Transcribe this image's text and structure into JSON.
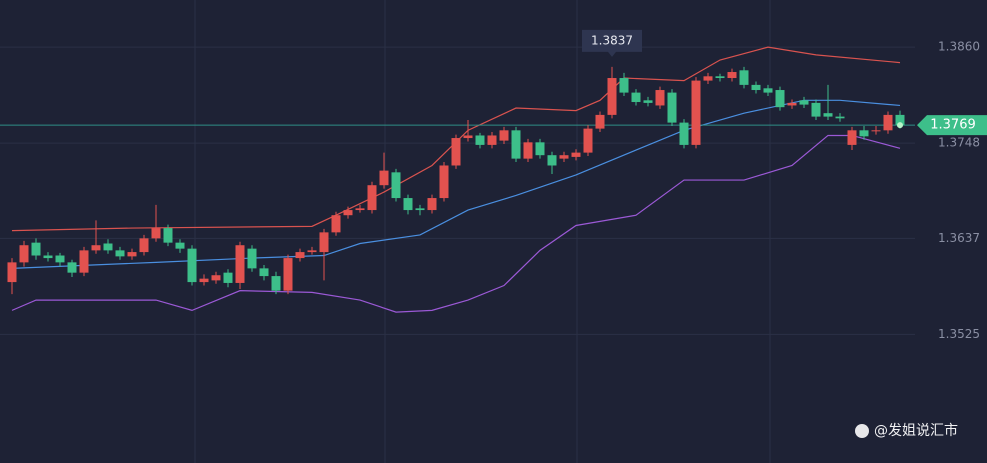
{
  "chart_data": {
    "type": "candlestick",
    "up_color": "#e2524f",
    "down_color": "#3dbf8a",
    "open": [
      1.3586,
      1.3609,
      1.3632,
      1.3617,
      1.3617,
      1.3609,
      1.3597,
      1.3623,
      1.3631,
      1.3623,
      1.3616,
      1.3621,
      1.3637,
      1.3649,
      1.3632,
      1.3625,
      1.3586,
      1.3588,
      1.3597,
      1.3585,
      1.3625,
      1.3602,
      1.3593,
      1.3576,
      1.3614,
      1.3621,
      1.3621,
      1.3644,
      1.3664,
      1.367,
      1.367,
      1.3699,
      1.3714,
      1.3684,
      1.3672,
      1.367,
      1.3684,
      1.3722,
      1.3754,
      1.3757,
      1.3746,
      1.3751,
      1.3763,
      1.373,
      1.3749,
      1.3734,
      1.373,
      1.3732,
      1.3737,
      1.3765,
      1.3781,
      1.3824,
      1.3807,
      1.3798,
      1.3792,
      1.3807,
      1.3772,
      1.3746,
      1.3821,
      1.3826,
      1.3824,
      1.3833,
      1.3816,
      1.3812,
      1.381,
      1.3792,
      1.3798,
      1.3795,
      1.3783,
      1.3779,
      1.3746,
      1.3763,
      1.3762,
      1.3763,
      1.3781
    ],
    "high": [
      1.3614,
      1.3634,
      1.3637,
      1.3621,
      1.362,
      1.3612,
      1.3627,
      1.3658,
      1.3636,
      1.3627,
      1.3625,
      1.3641,
      1.3676,
      1.3653,
      1.3636,
      1.3629,
      1.3595,
      1.3598,
      1.3601,
      1.3633,
      1.3629,
      1.3606,
      1.3598,
      1.3618,
      1.3625,
      1.3627,
      1.3648,
      1.3668,
      1.3674,
      1.3676,
      1.3703,
      1.3737,
      1.3718,
      1.3688,
      1.3676,
      1.3688,
      1.3726,
      1.3758,
      1.3775,
      1.376,
      1.3761,
      1.3767,
      1.3767,
      1.3753,
      1.3753,
      1.3738,
      1.3738,
      1.3741,
      1.3769,
      1.3785,
      1.3837,
      1.383,
      1.3811,
      1.3802,
      1.3814,
      1.3811,
      1.3776,
      1.3825,
      1.383,
      1.3829,
      1.3835,
      1.3837,
      1.382,
      1.3816,
      1.3814,
      1.3799,
      1.3802,
      1.3799,
      1.3816,
      1.3783,
      1.3767,
      1.3768,
      1.3768,
      1.3785,
      1.3786
    ],
    "low": [
      1.3572,
      1.3604,
      1.3612,
      1.361,
      1.3604,
      1.3592,
      1.3593,
      1.3619,
      1.3619,
      1.3612,
      1.3612,
      1.3617,
      1.3633,
      1.3628,
      1.362,
      1.3582,
      1.3582,
      1.3584,
      1.358,
      1.3578,
      1.3598,
      1.3588,
      1.3572,
      1.3572,
      1.361,
      1.3618,
      1.3588,
      1.364,
      1.366,
      1.3667,
      1.3666,
      1.3695,
      1.368,
      1.3665,
      1.3664,
      1.3666,
      1.368,
      1.3718,
      1.375,
      1.3742,
      1.3742,
      1.3747,
      1.3726,
      1.3726,
      1.373,
      1.3712,
      1.3726,
      1.3728,
      1.3733,
      1.3761,
      1.3777,
      1.3803,
      1.3792,
      1.3791,
      1.3788,
      1.3768,
      1.3742,
      1.3742,
      1.3817,
      1.382,
      1.382,
      1.3812,
      1.3806,
      1.3803,
      1.3786,
      1.3788,
      1.3789,
      1.3775,
      1.3775,
      1.3773,
      1.374,
      1.3752,
      1.3758,
      1.3759,
      1.3765
    ],
    "close": [
      1.3609,
      1.3629,
      1.3617,
      1.3614,
      1.3609,
      1.3597,
      1.3623,
      1.3629,
      1.3623,
      1.3616,
      1.3621,
      1.3637,
      1.3649,
      1.3632,
      1.3625,
      1.3586,
      1.359,
      1.3594,
      1.3585,
      1.3629,
      1.3602,
      1.3593,
      1.3576,
      1.3614,
      1.3621,
      1.3623,
      1.3644,
      1.3664,
      1.367,
      1.3672,
      1.3699,
      1.3716,
      1.3684,
      1.367,
      1.367,
      1.3684,
      1.3722,
      1.3754,
      1.3757,
      1.3746,
      1.3757,
      1.3763,
      1.373,
      1.3749,
      1.3734,
      1.3722,
      1.3734,
      1.3737,
      1.3765,
      1.3781,
      1.3824,
      1.3807,
      1.3796,
      1.3795,
      1.381,
      1.3772,
      1.3746,
      1.3821,
      1.3826,
      1.3824,
      1.3831,
      1.3816,
      1.381,
      1.3807,
      1.379,
      1.3795,
      1.3793,
      1.3779,
      1.3779,
      1.3777,
      1.3763,
      1.3756,
      1.3763,
      1.3781,
      1.3769
    ],
    "overlays": [
      {
        "color": "#d9534f",
        "x": [
          0,
          10,
          25,
          27,
          31,
          35,
          38,
          42,
          47,
          49,
          51,
          56,
          59,
          63,
          67,
          74
        ],
        "values": [
          1.3646,
          1.3649,
          1.3651,
          1.3664,
          1.3691,
          1.3722,
          1.3763,
          1.3789,
          1.3786,
          1.3798,
          1.3824,
          1.3821,
          1.3845,
          1.386,
          1.3851,
          1.3842
        ]
      },
      {
        "color": "#4a8fe0",
        "x": [
          0,
          12,
          20,
          26,
          29,
          34,
          38,
          42,
          47,
          52,
          56,
          61,
          66,
          69,
          74
        ],
        "values": [
          1.3602,
          1.3609,
          1.3614,
          1.3617,
          1.3631,
          1.3641,
          1.367,
          1.3687,
          1.3711,
          1.374,
          1.3763,
          1.3783,
          1.3798,
          1.3798,
          1.3792
        ]
      },
      {
        "color": "#9b59d6",
        "x": [
          0,
          2,
          12,
          15,
          19,
          25,
          29,
          32,
          35,
          38,
          41,
          44,
          47,
          52,
          56,
          61,
          65,
          68,
          70,
          74
        ],
        "values": [
          1.3553,
          1.3565,
          1.3565,
          1.3553,
          1.3576,
          1.3574,
          1.3565,
          1.3551,
          1.3553,
          1.3565,
          1.3582,
          1.3623,
          1.3652,
          1.3664,
          1.3705,
          1.3705,
          1.3722,
          1.3757,
          1.3757,
          1.3742
        ]
      }
    ],
    "ylim": [
      1.3375,
      1.3915
    ],
    "yticks": [
      1.3525,
      1.3637,
      1.3748,
      {
        "value": 1.386,
        "label": "1.3860"
      }
    ],
    "grid": true,
    "high_marker": 1.3837,
    "last_price": 1.3769,
    "last_price_color": "#3dbf8a",
    "watermark": "@发姐说汇市"
  }
}
